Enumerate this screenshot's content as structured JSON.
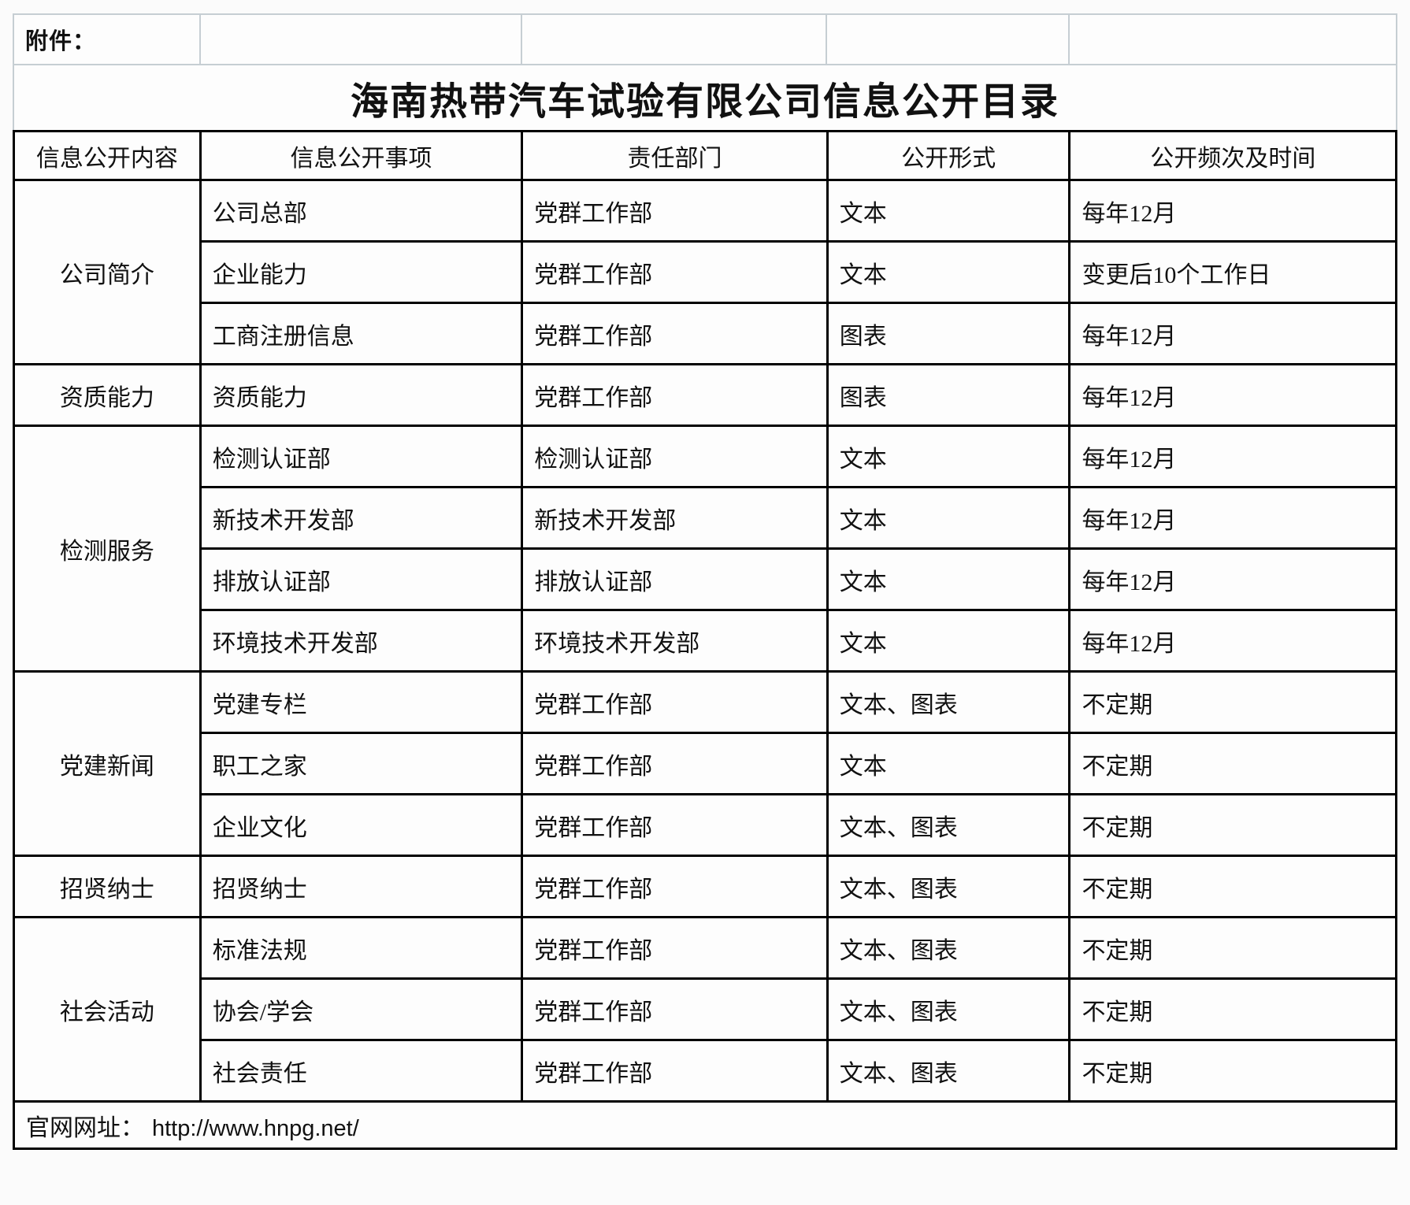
{
  "attachment_label": "附件：",
  "title": "海南热带汽车试验有限公司信息公开目录",
  "columns": [
    "信息公开内容",
    "信息公开事项",
    "责任部门",
    "公开形式",
    "公开频次及时间"
  ],
  "groups": [
    {
      "category": "公司简介",
      "rows": [
        [
          "公司总部",
          "党群工作部",
          "文本",
          "每年12月"
        ],
        [
          "企业能力",
          "党群工作部",
          "文本",
          "变更后10个工作日"
        ],
        [
          "工商注册信息",
          "党群工作部",
          "图表",
          "每年12月"
        ]
      ]
    },
    {
      "category": "资质能力",
      "rows": [
        [
          "资质能力",
          "党群工作部",
          "图表",
          "每年12月"
        ]
      ]
    },
    {
      "category": "检测服务",
      "rows": [
        [
          "检测认证部",
          "检测认证部",
          "文本",
          "每年12月"
        ],
        [
          "新技术开发部",
          "新技术开发部",
          "文本",
          "每年12月"
        ],
        [
          "排放认证部",
          "排放认证部",
          "文本",
          "每年12月"
        ],
        [
          "环境技术开发部",
          "环境技术开发部",
          "文本",
          "每年12月"
        ]
      ]
    },
    {
      "category": "党建新闻",
      "rows": [
        [
          "党建专栏",
          "党群工作部",
          "文本、图表",
          "不定期"
        ],
        [
          "职工之家",
          "党群工作部",
          "文本",
          "不定期"
        ],
        [
          "企业文化",
          "党群工作部",
          "文本、图表",
          "不定期"
        ]
      ]
    },
    {
      "category": "招贤纳士",
      "rows": [
        [
          "招贤纳士",
          "党群工作部",
          "文本、图表",
          "不定期"
        ]
      ]
    },
    {
      "category": "社会活动",
      "rows": [
        [
          "标准法规",
          "党群工作部",
          "文本、图表",
          "不定期"
        ],
        [
          "协会/学会",
          "党群工作部",
          "文本、图表",
          "不定期"
        ],
        [
          "社会责任",
          "党群工作部",
          "文本、图表",
          "不定期"
        ]
      ]
    }
  ],
  "footer": {
    "label": "官网网址：",
    "url": "http://www.hnpg.net/"
  }
}
